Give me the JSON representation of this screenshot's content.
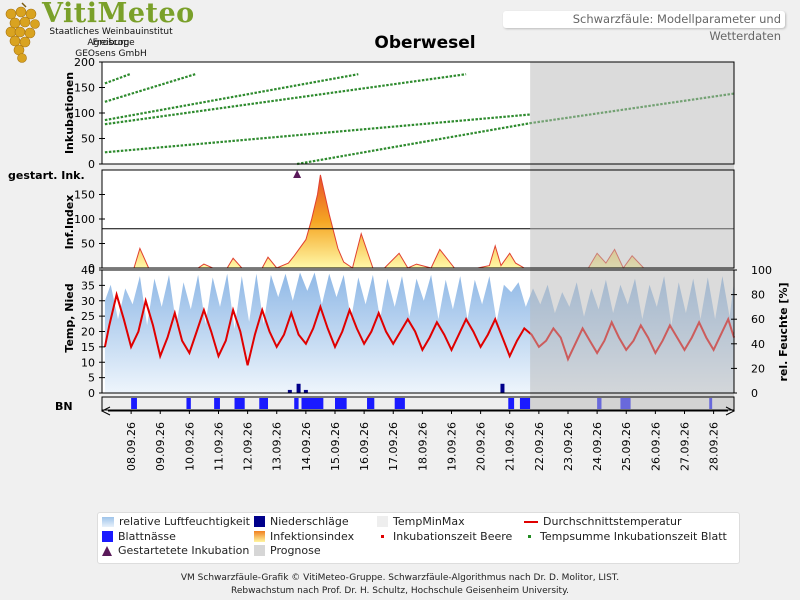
{
  "header": {
    "logo_title": "VitiMeteo",
    "logo_lines": [
      "Staatliches Weinbauinstitut Freiburg",
      "Agroscope",
      "GEOsens GmbH"
    ],
    "banner": "Schwarzfäule: Modellparameter und Wetterdaten",
    "station": "Oberwesel"
  },
  "footer": {
    "line1": "VM Schwarzfäule-Grafik © VitiMeteo-Gruppe. Schwarzfäule-Algorithmus nach Dr. D. Molitor, LIST.",
    "line2": "Rebwachstum nach Prof. Dr. H. Schultz, Hochschule Geisenheim University."
  },
  "legend": [
    {
      "label": "relative Luftfeuchtigkeit",
      "symbol": "area",
      "color": "#9fc4ea"
    },
    {
      "label": "Niederschläge",
      "symbol": "square",
      "color": "#00008b"
    },
    {
      "label": "TempMinMax",
      "symbol": "square",
      "color": "#eeeeee"
    },
    {
      "label": "Durchschnittstemperatur",
      "symbol": "line",
      "color": "#e00000"
    },
    {
      "label": "Blattnässe",
      "symbol": "square",
      "color": "#1a1aff"
    },
    {
      "label": "Infektionsindex",
      "symbol": "gradient",
      "color": "#f5a623"
    },
    {
      "label": "Inkubationszeit Beere",
      "symbol": "dot",
      "color": "#e00000"
    },
    {
      "label": "Tempsumme Inkubationszeit Blatt",
      "symbol": "dot",
      "color": "#228b22"
    },
    {
      "label": "Gestartetete Inkubation",
      "symbol": "triangle",
      "color": "#5a1a5a"
    },
    {
      "label": "Prognose",
      "symbol": "square",
      "color": "#d6d6d6"
    }
  ],
  "colors": {
    "incubation": "#2e8b2e",
    "temperature": "#e00000",
    "humidity": "#9fc4ea",
    "precipitation": "#00008b",
    "leaf_wetness": "#1a1aff",
    "forecast": "#d6d6d6",
    "marker": "#5a1a5a"
  },
  "chart_data": {
    "type": "line",
    "x": [
      "08.09.26",
      "09.09.26",
      "10.09.26",
      "11.09.26",
      "12.09.26",
      "13.09.26",
      "14.09.26",
      "15.09.26",
      "16.09.26",
      "17.09.26",
      "18.09.26",
      "19.09.26",
      "20.09.26",
      "21.09.26",
      "22.09.26",
      "23.09.26",
      "24.09.26",
      "25.09.26",
      "26.09.26",
      "27.09.26",
      "28.09.26"
    ],
    "x_range_days": [
      -1,
      20.7
    ],
    "forecast_start_day": 13.7,
    "panels": [
      {
        "name": "incubation",
        "ylabel": "Inkubationen",
        "yticks": [
          0,
          50,
          100,
          150,
          200
        ],
        "ylim": [
          0,
          200
        ],
        "series": [
          {
            "x": [
              -0.9,
              0.0
            ],
            "y": [
              158,
              177
            ]
          },
          {
            "x": [
              -0.9,
              2.2
            ],
            "y": [
              122,
              176
            ]
          },
          {
            "x": [
              -0.9,
              7.8
            ],
            "y": [
              86,
              176
            ]
          },
          {
            "x": [
              -0.9,
              11.5
            ],
            "y": [
              78,
              176
            ]
          },
          {
            "x": [
              -0.9,
              13.7
            ],
            "y": [
              23,
              97
            ]
          },
          {
            "x": [
              5.7,
              13.7,
              20.7
            ],
            "y": [
              0,
              80,
              138
            ]
          }
        ],
        "extra_label": "gestart. Ink.",
        "started_incubation_day": 5.7
      },
      {
        "name": "infection",
        "ylabel": "Inf.Index",
        "yticks": [
          0,
          50,
          100,
          150
        ],
        "ylim": [
          0,
          200
        ],
        "threshold": 80,
        "x": [
          -0.9,
          0.1,
          0.3,
          0.6,
          1.0,
          2.3,
          2.5,
          2.8,
          3.3,
          3.5,
          3.8,
          4.5,
          4.7,
          5.0,
          5.4,
          5.6,
          6.0,
          6.2,
          6.4,
          6.5,
          6.8,
          7.1,
          7.3,
          7.6,
          7.9,
          8.3,
          8.7,
          9.2,
          9.5,
          9.8,
          10.3,
          10.6,
          11.1,
          11.9,
          12.3,
          12.5,
          12.7,
          13.0,
          13.2,
          13.5,
          13.7,
          15.7,
          16.0,
          16.3,
          16.6,
          16.9,
          17.2,
          17.6,
          18.0,
          18.5,
          19.0,
          19.5,
          20.0,
          20.5,
          20.7
        ],
        "y": [
          0,
          0,
          40,
          0,
          0,
          0,
          8,
          0,
          0,
          20,
          0,
          0,
          22,
          0,
          10,
          25,
          58,
          100,
          150,
          190,
          110,
          40,
          12,
          0,
          70,
          0,
          0,
          30,
          0,
          8,
          0,
          38,
          0,
          0,
          5,
          45,
          5,
          30,
          10,
          0,
          0,
          0,
          30,
          10,
          38,
          0,
          25,
          0,
          0,
          0,
          0,
          0,
          0,
          0,
          0
        ]
      },
      {
        "name": "weather",
        "ylabel": "Temp, Nied",
        "yticks": [
          0,
          5,
          10,
          15,
          20,
          25,
          30,
          35,
          40
        ],
        "ylim": [
          0,
          40
        ],
        "y2label": "rel. Feuchte [%]",
        "y2ticks": [
          0,
          20,
          40,
          60,
          80,
          100
        ],
        "y2lim": [
          0,
          100
        ],
        "temperature": {
          "x": [
            -0.9,
            -0.75,
            -0.5,
            -0.25,
            0.0,
            0.25,
            0.5,
            0.75,
            1.0,
            1.25,
            1.5,
            1.75,
            2.0,
            2.25,
            2.5,
            2.75,
            3.0,
            3.25,
            3.5,
            3.75,
            4.0,
            4.25,
            4.5,
            4.75,
            5.0,
            5.25,
            5.5,
            5.75,
            6.0,
            6.25,
            6.5,
            6.75,
            7.0,
            7.25,
            7.5,
            7.75,
            8.0,
            8.25,
            8.5,
            8.75,
            9.0,
            9.25,
            9.5,
            9.75,
            10.0,
            10.25,
            10.5,
            10.75,
            11.0,
            11.25,
            11.5,
            11.75,
            12.0,
            12.25,
            12.5,
            12.75,
            13.0,
            13.25,
            13.5,
            13.75,
            14.0,
            14.25,
            14.5,
            14.75,
            15.0,
            15.25,
            15.5,
            15.75,
            16.0,
            16.25,
            16.5,
            16.75,
            17.0,
            17.25,
            17.5,
            17.75,
            18.0,
            18.25,
            18.5,
            18.75,
            19.0,
            19.25,
            19.5,
            19.75,
            20.0,
            20.25,
            20.5,
            20.7
          ],
          "y": [
            15,
            22,
            32,
            24,
            15,
            20,
            30,
            22,
            12,
            18,
            26,
            17,
            13,
            20,
            27,
            20,
            12,
            17,
            27,
            20,
            9,
            19,
            27,
            20,
            15,
            19,
            26,
            19,
            16,
            21,
            28,
            21,
            15,
            20,
            27,
            21,
            16,
            20,
            26,
            20,
            16,
            20,
            24,
            20,
            14,
            18,
            23,
            19,
            14,
            19,
            24,
            20,
            15,
            19,
            24,
            18,
            12,
            17,
            21,
            19,
            15,
            17,
            21,
            18,
            11,
            16,
            21,
            17,
            13,
            17,
            23,
            18,
            14,
            17,
            22,
            18,
            13,
            17,
            22,
            18,
            14,
            18,
            23,
            18,
            14,
            19,
            24,
            18
          ]
        },
        "humidity": {
          "x": [
            -0.9,
            -0.7,
            -0.45,
            -0.2,
            0.05,
            0.3,
            0.55,
            0.8,
            1.05,
            1.3,
            1.55,
            1.8,
            2.05,
            2.3,
            2.55,
            2.8,
            3.05,
            3.3,
            3.55,
            3.8,
            4.05,
            4.3,
            4.55,
            4.8,
            5.05,
            5.3,
            5.55,
            5.8,
            6.05,
            6.3,
            6.55,
            6.8,
            7.05,
            7.3,
            7.55,
            7.8,
            8.05,
            8.3,
            8.55,
            8.8,
            9.05,
            9.3,
            9.55,
            9.8,
            10.05,
            10.3,
            10.55,
            10.8,
            11.05,
            11.3,
            11.55,
            11.8,
            12.05,
            12.3,
            12.55,
            12.8,
            13.05,
            13.3,
            13.55,
            13.8,
            14.05,
            14.3,
            14.55,
            14.8,
            15.05,
            15.3,
            15.55,
            15.8,
            16.05,
            16.3,
            16.55,
            16.8,
            17.05,
            17.3,
            17.55,
            17.8,
            18.05,
            18.3,
            18.55,
            18.8,
            19.05,
            19.3,
            19.55,
            19.8,
            20.05,
            20.3,
            20.55,
            20.7
          ],
          "y": [
            75,
            88,
            60,
            85,
            72,
            95,
            55,
            93,
            70,
            96,
            55,
            90,
            68,
            96,
            56,
            94,
            70,
            97,
            52,
            95,
            58,
            97,
            56,
            96,
            78,
            97,
            75,
            98,
            83,
            98,
            72,
            97,
            78,
            96,
            60,
            94,
            72,
            96,
            60,
            93,
            70,
            95,
            62,
            93,
            75,
            96,
            60,
            92,
            68,
            95,
            60,
            92,
            72,
            95,
            58,
            88,
            82,
            90,
            70,
            85,
            72,
            88,
            65,
            82,
            70,
            90,
            62,
            85,
            68,
            92,
            65,
            88,
            72,
            93,
            60,
            88,
            70,
            95,
            55,
            90,
            65,
            93,
            60,
            94,
            60,
            95,
            62,
            90
          ]
        },
        "precipitation": {
          "x": [
            5.45,
            5.75,
            6.0,
            12.75
          ],
          "y": [
            1,
            3,
            1,
            3
          ]
        }
      }
    ],
    "leaf_wetness": {
      "ylabel": "BN",
      "intervals": [
        [
          0.0,
          0.2
        ],
        [
          1.9,
          2.05
        ],
        [
          2.85,
          3.05
        ],
        [
          3.55,
          3.9
        ],
        [
          4.4,
          4.7
        ],
        [
          5.6,
          5.75
        ],
        [
          5.85,
          6.6
        ],
        [
          7.0,
          7.4
        ],
        [
          8.1,
          8.35
        ],
        [
          9.05,
          9.4
        ],
        [
          12.95,
          13.15
        ],
        [
          13.35,
          13.7
        ],
        [
          16.0,
          16.15
        ],
        [
          16.8,
          17.15
        ],
        [
          19.85,
          19.95
        ]
      ]
    }
  }
}
